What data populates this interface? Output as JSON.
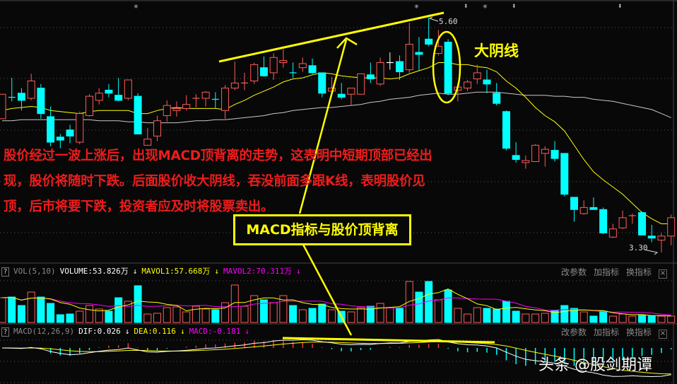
{
  "colors": {
    "up": "#ff5a5a",
    "down": "#00ffff",
    "flat": "#ffffff",
    "ma_short": "#ffff00",
    "ma_long": "#c8c8c8",
    "annotation": "#ffff00",
    "note_text": "#ee1c1c"
  },
  "main": {
    "high_label": "5.60",
    "low_label": "3.30",
    "top_markers": [
      "✳",
      "✳",
      "⬍",
      "✳",
      "⬍",
      "⬍"
    ],
    "note_lines": [
      "股价经过一波上涨后，出现MACD顶背离的走势，这表明中短期顶部已经出",
      "现，股价将随时下跌。后面股价收大阴线，吞没前面多跟K线，表明股价见",
      "顶，后市将要下跌，投资者应及时将股票卖出。"
    ],
    "box_label": "MACD指标与股价顶背离",
    "big_yin_label": "大阴线"
  },
  "vol_panel": {
    "help": "?",
    "name": "VOL(5,10)",
    "volume": "VOLUME:53.826万",
    "mavol1": "MAVOL1:57.668万",
    "mavol2": "MAVOL2:70.311万",
    "arrow": "↓",
    "buttons": [
      "改参数",
      "加指标",
      "换指标"
    ],
    "close": "×"
  },
  "macd_panel": {
    "help": "?",
    "name": "MACD(12,26,9)",
    "dif": "DIF:0.026",
    "dea": "DEA:0.116",
    "macd": "MACD:-0.181",
    "arrow": "↓",
    "buttons": [
      "改参数",
      "加指标",
      "换指标"
    ],
    "close": "×"
  },
  "watermark": "头条 @股剑期谭",
  "chart_data": {
    "type": "candlestick",
    "price_range": [
      3.3,
      5.6
    ],
    "candles_ohlc": [
      [
        4.61,
        4.85,
        4.61,
        4.85
      ],
      [
        4.82,
        5.01,
        4.78,
        4.82,
        "down"
      ],
      [
        4.86,
        4.91,
        4.69,
        4.79
      ],
      [
        4.81,
        5.05,
        4.79,
        4.98
      ],
      [
        4.91,
        4.95,
        4.61,
        4.66
      ],
      [
        4.63,
        4.73,
        4.34,
        4.38
      ],
      [
        4.43,
        4.46,
        4.32,
        4.4
      ],
      [
        4.5,
        4.55,
        4.37,
        4.44
      ],
      [
        4.38,
        4.68,
        4.36,
        4.66
      ],
      [
        4.64,
        4.85,
        4.63,
        4.83
      ],
      [
        4.79,
        4.91,
        4.75,
        4.86
      ],
      [
        4.89,
        4.95,
        4.82,
        4.86
      ],
      [
        4.84,
        5.01,
        4.78,
        4.79
      ],
      [
        4.81,
        4.99,
        4.79,
        4.99
      ],
      [
        4.83,
        4.86,
        4.46,
        4.46
      ],
      [
        4.35,
        4.52,
        4.35,
        4.41
      ],
      [
        4.44,
        4.64,
        4.39,
        4.59
      ],
      [
        4.64,
        4.79,
        4.58,
        4.74
      ],
      [
        4.69,
        4.78,
        4.63,
        4.71
      ],
      [
        4.71,
        4.84,
        4.69,
        4.75
      ],
      [
        4.81,
        4.85,
        4.72,
        4.81,
        "up"
      ],
      [
        4.81,
        4.88,
        4.73,
        4.87
      ],
      [
        4.8,
        4.87,
        4.71,
        4.8,
        "down"
      ],
      [
        4.69,
        4.94,
        4.61,
        4.91
      ],
      [
        4.91,
        5.17,
        4.89,
        4.96
      ],
      [
        4.96,
        5.06,
        4.89,
        4.96,
        "up"
      ],
      [
        4.98,
        5.16,
        4.95,
        5.14
      ],
      [
        5.11,
        5.22,
        5.02,
        5.03
      ],
      [
        5.06,
        5.25,
        4.99,
        5.21
      ],
      [
        5.16,
        5.29,
        5.11,
        5.18
      ],
      [
        5.06,
        5.16,
        5.01,
        5.06,
        "down"
      ],
      [
        5.11,
        5.21,
        5.07,
        5.15
      ],
      [
        5.13,
        5.2,
        5.05,
        5.06
      ],
      [
        5.06,
        5.06,
        4.82,
        4.86
      ],
      [
        4.88,
        5.02,
        4.84,
        4.91
      ],
      [
        4.85,
        4.96,
        4.8,
        4.82
      ],
      [
        4.85,
        4.91,
        4.74,
        4.91
      ],
      [
        4.85,
        5.05,
        4.85,
        5.05
      ],
      [
        5.04,
        5.16,
        4.96,
        5.0
      ],
      [
        4.95,
        5.21,
        4.93,
        5.16
      ],
      [
        5.16,
        5.26,
        5.09,
        5.16,
        "flat"
      ],
      [
        5.17,
        5.23,
        4.99,
        5.07
      ],
      [
        5.09,
        5.55,
        5.06,
        5.34
      ],
      [
        5.26,
        5.41,
        5.08,
        5.24
      ],
      [
        5.39,
        5.6,
        5.32,
        5.34
      ],
      [
        5.25,
        5.48,
        5.23,
        5.32
      ],
      [
        5.36,
        5.39,
        4.84,
        4.86
      ],
      [
        4.89,
        4.96,
        4.78,
        4.92
      ],
      [
        4.91,
        4.99,
        4.88,
        4.97
      ],
      [
        5.0,
        5.14,
        4.95,
        5.06
      ],
      [
        4.99,
        5.09,
        4.86,
        4.95
      ],
      [
        4.86,
        4.96,
        4.74,
        4.76
      ],
      [
        4.68,
        4.69,
        4.3,
        4.32
      ],
      [
        4.25,
        4.38,
        4.18,
        4.21
      ],
      [
        4.18,
        4.25,
        4.12,
        4.2
      ],
      [
        4.19,
        4.36,
        4.19,
        4.35
      ],
      [
        4.27,
        4.34,
        4.14,
        4.31
      ],
      [
        4.3,
        4.39,
        4.19,
        4.22
      ],
      [
        4.27,
        4.27,
        3.85,
        3.87
      ],
      [
        3.84,
        3.84,
        3.6,
        3.72
      ],
      [
        3.68,
        3.81,
        3.67,
        3.74
      ],
      [
        3.74,
        3.84,
        3.72,
        3.72
      ],
      [
        3.72,
        3.74,
        3.48,
        3.49
      ],
      [
        3.45,
        3.58,
        3.44,
        3.53
      ],
      [
        3.54,
        3.71,
        3.53,
        3.64
      ],
      [
        3.65,
        3.68,
        3.58,
        3.66
      ],
      [
        3.69,
        3.7,
        3.47,
        3.47
      ],
      [
        3.46,
        3.57,
        3.4,
        3.44
      ],
      [
        3.42,
        3.49,
        3.3,
        3.46
      ],
      [
        3.46,
        3.67,
        3.37,
        3.64
      ]
    ],
    "ma_short": [
      4.69,
      4.71,
      4.72,
      4.73,
      4.72,
      4.69,
      4.68,
      4.67,
      4.66,
      4.68,
      4.69,
      4.69,
      4.69,
      4.69,
      4.66,
      4.66,
      4.69,
      4.71,
      4.72,
      4.71,
      4.71,
      4.71,
      4.71,
      4.7,
      4.75,
      4.79,
      4.84,
      4.88,
      4.92,
      4.97,
      5.0,
      5.01,
      5.04,
      5.06,
      5.05,
      5.03,
      5.02,
      5.01,
      5.01,
      5.01,
      5.0,
      5.01,
      5.05,
      5.08,
      5.11,
      5.16,
      5.16,
      5.14,
      5.14,
      5.12,
      5.11,
      5.07,
      4.98,
      4.91,
      4.82,
      4.72,
      4.64,
      4.58,
      4.49,
      4.35,
      4.21,
      4.09,
      4.01,
      3.94,
      3.87,
      3.78,
      3.69,
      3.63,
      3.58,
      3.58
    ],
    "ma_long": [
      4.59,
      4.59,
      4.6,
      4.6,
      4.6,
      4.6,
      4.6,
      4.6,
      4.6,
      4.6,
      4.59,
      4.59,
      4.59,
      4.58,
      4.58,
      4.57,
      4.57,
      4.57,
      4.57,
      4.58,
      4.59,
      4.59,
      4.6,
      4.6,
      4.61,
      4.62,
      4.63,
      4.64,
      4.66,
      4.67,
      4.69,
      4.7,
      4.71,
      4.72,
      4.72,
      4.73,
      4.74,
      4.75,
      4.77,
      4.78,
      4.8,
      4.81,
      4.82,
      4.84,
      4.85,
      4.86,
      4.85,
      4.85,
      4.86,
      4.87,
      4.87,
      4.87,
      4.86,
      4.85,
      4.84,
      4.84,
      4.84,
      4.83,
      4.83,
      4.82,
      4.82,
      4.8,
      4.79,
      4.78,
      4.76,
      4.74,
      4.72,
      4.7,
      4.66,
      4.62
    ],
    "volume_wan": [
      210,
      216,
      144,
      258,
      216,
      162,
      66,
      72,
      96,
      144,
      114,
      96,
      210,
      180,
      312,
      72,
      78,
      126,
      132,
      90,
      138,
      114,
      108,
      168,
      318,
      138,
      228,
      192,
      168,
      228,
      144,
      108,
      120,
      156,
      108,
      96,
      90,
      126,
      138,
      162,
      126,
      120,
      348,
      258,
      348,
      192,
      276,
      120,
      72,
      126,
      120,
      114,
      180,
      96,
      72,
      72,
      78,
      102,
      144,
      120,
      90,
      54,
      96,
      54,
      72,
      54,
      60,
      54,
      54,
      54
    ]
  }
}
